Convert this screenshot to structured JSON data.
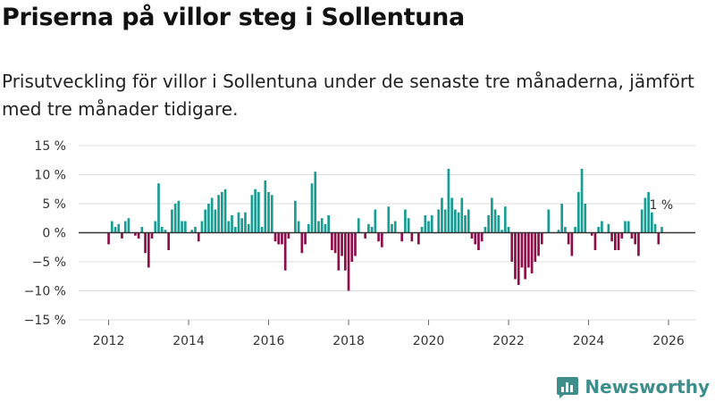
{
  "title": "Priserna på villor steg i Sollentuna",
  "subtitle": "Prisutveckling för villor i Sollentuna under de senaste tre månaderna, jämfört med tre månader tidigare.",
  "brand": "Newsworthy",
  "colors": {
    "positive": "#1a9c92",
    "negative": "#8c0f4a",
    "grid": "#dddddd",
    "zero": "#333333",
    "brand": "#3e8f8c"
  },
  "chart_data": {
    "type": "bar",
    "title": "Priserna på villor steg i Sollentuna",
    "xlabel": "",
    "ylabel": "",
    "y_ticks": [
      -15,
      -10,
      -5,
      0,
      5,
      10,
      15
    ],
    "y_tick_labels": [
      "−15 %",
      "−10 %",
      "−5 %",
      "0 %",
      "5 %",
      "10 %",
      "15 %"
    ],
    "ylim": [
      -15,
      15
    ],
    "x_ticks": [
      2012,
      2014,
      2016,
      2018,
      2020,
      2022,
      2024,
      2026
    ],
    "x_tick_labels": [
      "2012",
      "2014",
      "2016",
      "2018",
      "2020",
      "2022",
      "2024",
      "2026"
    ],
    "xlim": [
      2011.25,
      2026.67
    ],
    "start": 2012.0,
    "step": 0.08333,
    "last_label": "1 %",
    "values": [
      -2,
      2,
      1,
      1.5,
      -1,
      2,
      2.5,
      0,
      -0.5,
      -1,
      1,
      -3.5,
      -6,
      -1,
      2,
      8.5,
      1,
      0.5,
      -3,
      4,
      5,
      5.5,
      2,
      2,
      0,
      0.5,
      1,
      -1.5,
      2,
      4,
      5,
      6,
      4,
      6.5,
      7,
      7.5,
      2,
      3,
      1,
      3.5,
      2.5,
      3.5,
      1.5,
      6.5,
      7.5,
      7,
      1,
      9,
      7,
      6.5,
      -1.5,
      -2,
      -2,
      -6.5,
      -1,
      0,
      5.5,
      2,
      -3.5,
      -2,
      1.5,
      8.5,
      10.5,
      2,
      2.5,
      1.5,
      3,
      -3,
      -3.5,
      -6.5,
      -4,
      -6.5,
      -10,
      -5,
      -4,
      2.5,
      0,
      -1,
      1.5,
      1,
      4,
      -1.5,
      -2.5,
      0,
      4.5,
      1.5,
      2,
      0,
      -1.5,
      4,
      2.5,
      -1.5,
      0,
      -2,
      1,
      3,
      2,
      3,
      0,
      4,
      6,
      4,
      11,
      6,
      4,
      3.5,
      6,
      3,
      4,
      -1,
      -2,
      -3,
      -1.5,
      1,
      3,
      6,
      4,
      3,
      0.5,
      4.5,
      1,
      -5,
      -8,
      -9,
      -6,
      -8,
      -6,
      -7,
      -5,
      -4,
      -2,
      0,
      4,
      0,
      0,
      0.5,
      5,
      1,
      -2,
      -4,
      1,
      7,
      11,
      5,
      0,
      -0.5,
      -3,
      1,
      2,
      0,
      1.5,
      -1.5,
      -3,
      -3,
      -1,
      2,
      2,
      -1,
      -2,
      -4,
      4,
      6,
      7,
      3.5,
      1.5,
      -2,
      1
    ]
  }
}
